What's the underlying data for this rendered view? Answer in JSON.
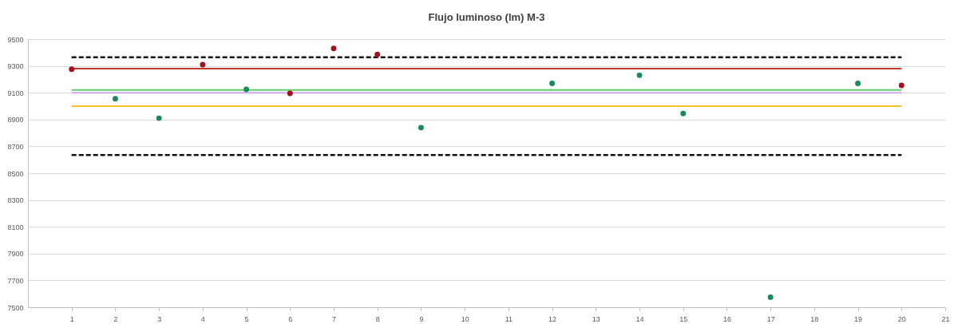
{
  "chart_data": {
    "type": "scatter",
    "title": "Flujo luminoso (lm) M-3",
    "xlim": [
      0,
      21
    ],
    "xticks": [
      1,
      2,
      3,
      4,
      5,
      6,
      7,
      8,
      9,
      10,
      11,
      12,
      13,
      14,
      15,
      16,
      17,
      18,
      19,
      20,
      21
    ],
    "ylim": [
      7500,
      9500
    ],
    "yticks": [
      7500,
      7700,
      7900,
      8100,
      8300,
      8500,
      8700,
      8900,
      9100,
      9300,
      9500
    ],
    "grid": "y",
    "marker": "circle",
    "series": [
      {
        "color": "#a3121f",
        "x": [
          1,
          4,
          6,
          7,
          8,
          20
        ],
        "values": [
          9275,
          9310,
          9095,
          9430,
          9385,
          9155
        ]
      },
      {
        "color": "#1b8a5a",
        "x": [
          2,
          3,
          5,
          9,
          12,
          14,
          15,
          17,
          19
        ],
        "values": [
          9055,
          8910,
          9125,
          8840,
          9170,
          9230,
          8945,
          7575,
          9170
        ]
      }
    ],
    "ref_lines": [
      {
        "axis": "y",
        "value": 9365,
        "color": "#111111",
        "line_style": "dashed"
      },
      {
        "axis": "y",
        "value": 9280,
        "color": "#c0392b",
        "line_style": "solid"
      },
      {
        "axis": "y",
        "value": 9120,
        "color": "#5ccf6a",
        "line_style": "solid"
      },
      {
        "axis": "y",
        "value": 9100,
        "color": "#c9a8ec",
        "line_style": "solid"
      },
      {
        "axis": "y",
        "value": 9000,
        "color": "#f5c22b",
        "line_style": "solid"
      },
      {
        "axis": "y",
        "value": 8635,
        "color": "#111111",
        "line_style": "dashed"
      }
    ]
  }
}
